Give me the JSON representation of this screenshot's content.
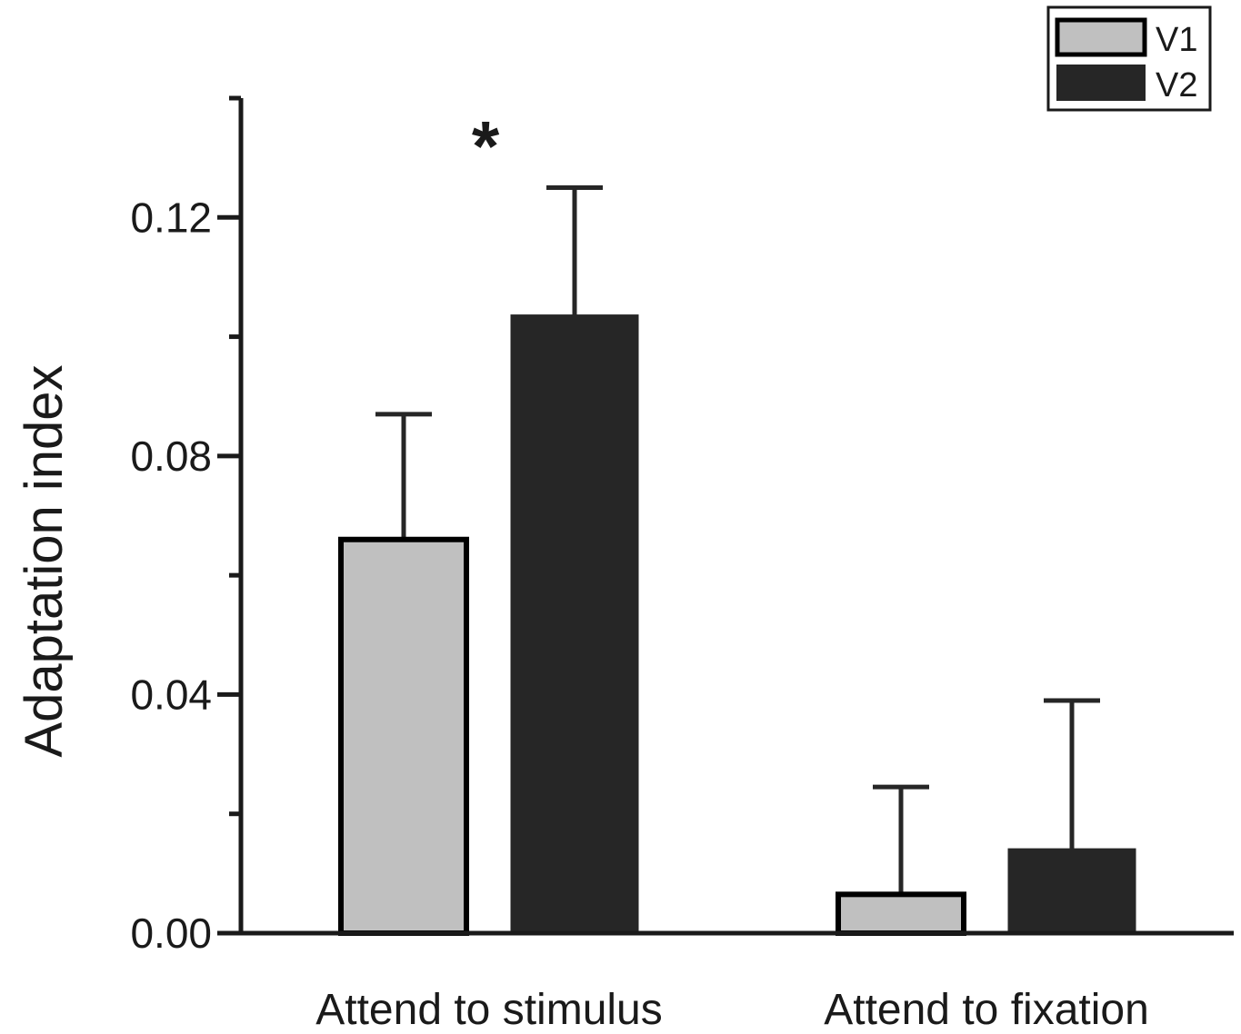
{
  "chart_data": {
    "type": "bar",
    "title": "",
    "xlabel": "",
    "ylabel": "Adaptation index",
    "ylim": [
      0,
      0.14
    ],
    "yticks": [
      {
        "value": 0.0,
        "label": "0.00"
      },
      {
        "value": 0.04,
        "label": "0.04"
      },
      {
        "value": 0.08,
        "label": "0.08"
      },
      {
        "value": 0.12,
        "label": "0.12"
      }
    ],
    "minor_yticks": [
      0.02,
      0.06,
      0.1,
      0.14
    ],
    "categories": [
      "Attend to stimulus",
      "Attend to fixation"
    ],
    "series": [
      {
        "name": "V1",
        "color": "#c0c0c0",
        "outline": "#000000",
        "values": [
          0.066,
          0.0065
        ],
        "errors": [
          0.021,
          0.018
        ]
      },
      {
        "name": "V2",
        "color": "#262626",
        "outline": "#262626",
        "values": [
          0.1035,
          0.014
        ],
        "errors": [
          0.0215,
          0.025
        ]
      }
    ],
    "annotations": [
      {
        "text": "*",
        "category": "Attend to stimulus",
        "y": 0.134
      }
    ],
    "legend": {
      "position": "top-right"
    },
    "grid": false
  }
}
